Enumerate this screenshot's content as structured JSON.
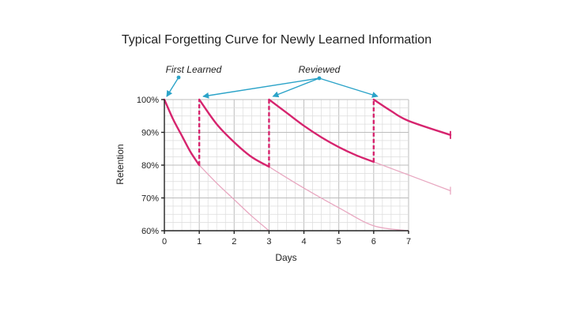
{
  "chart_data": {
    "type": "line",
    "title": "Typical Forgetting Curve for Newly Learned Information",
    "xlabel": "Days",
    "ylabel": "Retention",
    "xlim": [
      0,
      7
    ],
    "ylim": [
      60,
      100
    ],
    "x_ticks": [
      "0",
      "1",
      "2",
      "3",
      "4",
      "5",
      "6",
      "7"
    ],
    "y_ticks": [
      "60%",
      "70%",
      "80%",
      "90%",
      "100%"
    ],
    "grid": true,
    "legend": "none",
    "series": [
      {
        "style": "solid",
        "segments": [
          [
            [
              0,
              100
            ],
            [
              0.25,
              94
            ],
            [
              0.5,
              89
            ],
            [
              0.75,
              84
            ],
            [
              1,
              80
            ]
          ],
          [
            [
              1,
              100
            ],
            [
              1.5,
              92.5
            ],
            [
              2,
              87
            ],
            [
              2.5,
              82.5
            ],
            [
              3,
              79.5
            ]
          ],
          [
            [
              3,
              100
            ],
            [
              3.5,
              96
            ],
            [
              4,
              92
            ],
            [
              4.5,
              88.5
            ],
            [
              5,
              85.5
            ],
            [
              5.5,
              83
            ],
            [
              6,
              81
            ]
          ],
          [
            [
              6,
              100
            ],
            [
              6.5,
              96.5
            ],
            [
              7,
              93.5
            ],
            [
              8.2,
              89.2
            ]
          ]
        ]
      },
      {
        "style": "faded",
        "segments": [
          [
            [
              1,
              80
            ],
            [
              1.5,
              74.5
            ],
            [
              2,
              69.5
            ],
            [
              2.5,
              64.5
            ],
            [
              3,
              60
            ]
          ],
          [
            [
              3,
              79.5
            ],
            [
              4,
              73
            ],
            [
              5,
              67
            ],
            [
              6,
              61.5
            ],
            [
              7,
              60
            ]
          ],
          [
            [
              6,
              81
            ],
            [
              7,
              77
            ],
            [
              8.2,
              72.2
            ]
          ]
        ]
      }
    ],
    "review_jumps": [
      {
        "x": 1,
        "from": 80,
        "to": 100
      },
      {
        "x": 3,
        "from": 79.5,
        "to": 100
      },
      {
        "x": 6,
        "from": 81,
        "to": 100
      }
    ],
    "annotations": [
      {
        "text": "First Learned",
        "points_to": [
          [
            0,
            100
          ]
        ]
      },
      {
        "text": "Reviewed",
        "points_to": [
          [
            1,
            100
          ],
          [
            3,
            100
          ],
          [
            6,
            100
          ]
        ]
      }
    ],
    "colors": {
      "curve": "#d6246e",
      "faded": "#e8a7c0",
      "arrow": "#2ba3c8",
      "axis": "#222222"
    }
  }
}
